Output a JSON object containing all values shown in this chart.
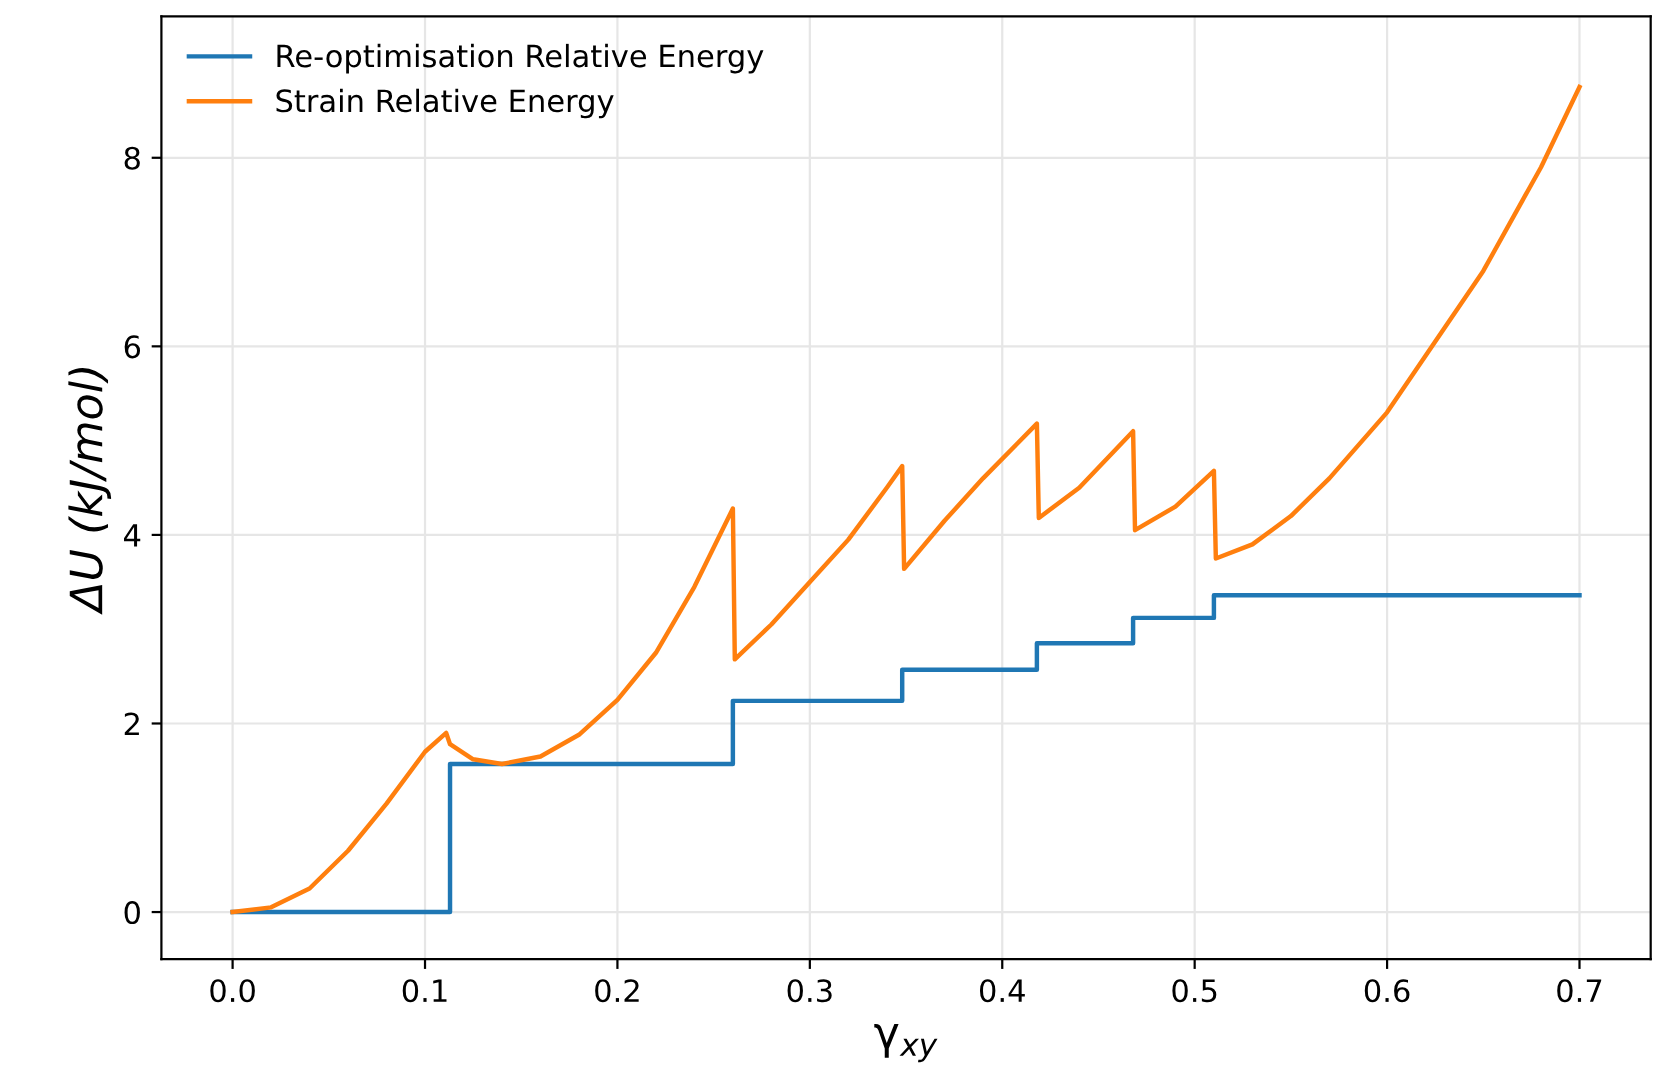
{
  "chart_data": {
    "type": "line",
    "xlabel": "γ$_{xy}$",
    "ylabel": "ΔU (kJ/mol)",
    "xlim": [
      -0.037,
      0.737
    ],
    "ylim": [
      -0.5,
      9.5
    ],
    "xticks": [
      {
        "value": 0,
        "label": "0.0"
      },
      {
        "value": 0.1,
        "label": "0.1"
      },
      {
        "value": 0.2,
        "label": "0.2"
      },
      {
        "value": 0.3,
        "label": "0.3"
      },
      {
        "value": 0.4,
        "label": "0.4"
      },
      {
        "value": 0.5,
        "label": "0.5"
      },
      {
        "value": 0.6,
        "label": "0.6"
      },
      {
        "value": 0.7,
        "label": "0.7"
      }
    ],
    "yticks": [
      0,
      2,
      4,
      6,
      8
    ],
    "grid": true,
    "legend": "top left",
    "series": [
      {
        "name": "Re-optimisation Relative Energy",
        "type": "step",
        "color": "#1f77b4",
        "x": [
          0,
          0.113,
          0.26,
          0.348,
          0.418,
          0.468,
          0.51,
          0.7
        ],
        "values": [
          0,
          1.57,
          2.24,
          2.57,
          2.85,
          3.12,
          3.36,
          3.36
        ]
      },
      {
        "name": "Strain Relative Energy",
        "color": "#ff7f0e",
        "x": [
          0,
          0.02,
          0.04,
          0.06,
          0.08,
          0.1,
          0.111,
          0.113,
          0.125,
          0.14,
          0.16,
          0.18,
          0.2,
          0.22,
          0.24,
          0.26,
          0.261,
          0.28,
          0.3,
          0.32,
          0.34,
          0.348,
          0.349,
          0.37,
          0.39,
          0.418,
          0.419,
          0.44,
          0.468,
          0.469,
          0.49,
          0.51,
          0.511,
          0.53,
          0.55,
          0.57,
          0.6,
          0.62,
          0.65,
          0.68,
          0.7
        ],
        "values": [
          0,
          0.05,
          0.25,
          0.65,
          1.15,
          1.7,
          1.9,
          1.78,
          1.62,
          1.57,
          1.65,
          1.88,
          2.25,
          2.75,
          3.45,
          4.28,
          2.68,
          3.05,
          3.5,
          3.95,
          4.5,
          4.73,
          3.64,
          4.15,
          4.6,
          5.18,
          4.18,
          4.5,
          5.1,
          4.05,
          4.3,
          4.68,
          3.75,
          3.9,
          4.2,
          4.6,
          5.3,
          5.9,
          6.8,
          7.9,
          8.75
        ]
      }
    ]
  }
}
